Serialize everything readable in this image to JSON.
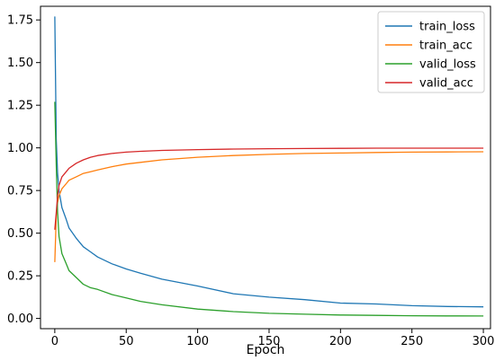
{
  "chart_data": {
    "type": "line",
    "xlabel": "Epoch",
    "ylabel": "",
    "title": "",
    "xlim": [
      -10,
      305
    ],
    "ylim": [
      -0.06,
      1.83
    ],
    "xticks": [
      0,
      50,
      100,
      150,
      200,
      250,
      300
    ],
    "yticks": [
      0.0,
      0.25,
      0.5,
      0.75,
      1.0,
      1.25,
      1.5,
      1.75
    ],
    "xtick_labels": [
      "0",
      "50",
      "100",
      "150",
      "200",
      "250",
      "300"
    ],
    "ytick_labels": [
      "0.00",
      "0.25",
      "0.50",
      "0.75",
      "1.00",
      "1.25",
      "1.50",
      "1.75"
    ],
    "grid": false,
    "legend_position": "top-right",
    "series": [
      {
        "name": "train_loss",
        "color": "#1f77b4",
        "x": [
          0,
          1,
          2,
          3,
          5,
          8,
          10,
          15,
          20,
          25,
          30,
          40,
          50,
          60,
          75,
          100,
          125,
          150,
          175,
          200,
          225,
          250,
          275,
          300
        ],
        "y": [
          1.77,
          1.05,
          0.85,
          0.75,
          0.65,
          0.58,
          0.53,
          0.47,
          0.42,
          0.39,
          0.36,
          0.32,
          0.29,
          0.265,
          0.23,
          0.19,
          0.145,
          0.125,
          0.11,
          0.09,
          0.085,
          0.075,
          0.07,
          0.068
        ]
      },
      {
        "name": "train_acc",
        "color": "#ff7f0e",
        "x": [
          0,
          1,
          2,
          3,
          5,
          8,
          10,
          15,
          20,
          25,
          30,
          40,
          50,
          60,
          75,
          100,
          125,
          150,
          175,
          200,
          225,
          250,
          275,
          300
        ],
        "y": [
          0.33,
          0.6,
          0.68,
          0.72,
          0.76,
          0.79,
          0.81,
          0.83,
          0.85,
          0.86,
          0.87,
          0.89,
          0.905,
          0.915,
          0.93,
          0.945,
          0.955,
          0.962,
          0.967,
          0.97,
          0.973,
          0.975,
          0.976,
          0.977
        ]
      },
      {
        "name": "valid_loss",
        "color": "#2ca02c",
        "x": [
          0,
          1,
          2,
          3,
          5,
          8,
          10,
          15,
          20,
          25,
          30,
          40,
          50,
          60,
          75,
          100,
          125,
          150,
          175,
          200,
          225,
          250,
          275,
          300
        ],
        "y": [
          1.27,
          0.9,
          0.62,
          0.48,
          0.38,
          0.32,
          0.28,
          0.24,
          0.2,
          0.18,
          0.17,
          0.14,
          0.12,
          0.1,
          0.08,
          0.055,
          0.04,
          0.03,
          0.025,
          0.02,
          0.018,
          0.016,
          0.015,
          0.014
        ]
      },
      {
        "name": "valid_acc",
        "color": "#d62728",
        "x": [
          0,
          1,
          2,
          3,
          5,
          8,
          10,
          15,
          20,
          25,
          30,
          40,
          50,
          60,
          75,
          100,
          125,
          150,
          175,
          200,
          225,
          250,
          275,
          300
        ],
        "y": [
          0.52,
          0.62,
          0.72,
          0.78,
          0.83,
          0.86,
          0.88,
          0.91,
          0.93,
          0.945,
          0.955,
          0.967,
          0.975,
          0.98,
          0.985,
          0.99,
          0.993,
          0.995,
          0.996,
          0.997,
          0.998,
          0.998,
          0.998,
          0.998
        ]
      }
    ]
  }
}
